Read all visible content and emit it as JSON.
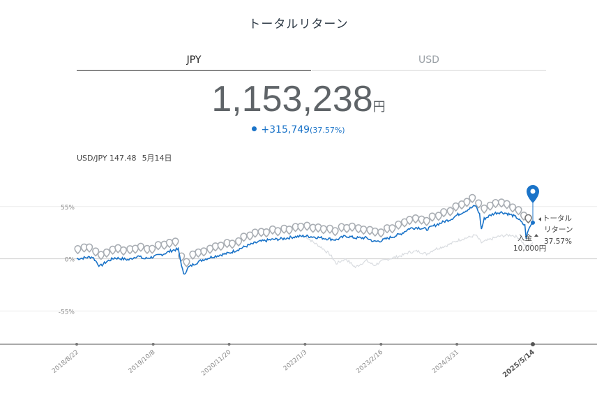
{
  "header": {
    "title": "トータルリターン"
  },
  "tabs": [
    {
      "label": "JPY",
      "active": true
    },
    {
      "label": "USD",
      "active": false
    }
  ],
  "summary": {
    "amount": "1,153,238",
    "unit": "円",
    "change": "+315,749",
    "change_pct": "(37.57%)"
  },
  "fx": {
    "label": "USD/JPY 147.48",
    "date": "5月14日"
  },
  "colors": {
    "accent": "#1a73c8",
    "marker": "#a8adb3",
    "benchmark": "#d9dce0",
    "axis": "#888888"
  },
  "chart_data": {
    "type": "line",
    "x_ticks": [
      "2018/8/22",
      "2019/10/8",
      "2020/11/20",
      "2022/1/3",
      "2023/2/16",
      "2024/3/31",
      "2025/5/14"
    ],
    "y_ticks": [
      "55%",
      "0%",
      "-55%"
    ],
    "ylim": [
      -90,
      85
    ],
    "series": [
      {
        "role": "total-return",
        "color": "#1a73c8",
        "points": [
          [
            "2018/8/22",
            0
          ],
          [
            "2018/10/1",
            1
          ],
          [
            "2018/11/15",
            2
          ],
          [
            "2018/12/25",
            -8
          ],
          [
            "2019/1/30",
            -3
          ],
          [
            "2019/3/15",
            1
          ],
          [
            "2019/5/30",
            -1
          ],
          [
            "2019/7/15",
            3
          ],
          [
            "2019/8/20",
            0
          ],
          [
            "2019/10/8",
            2
          ],
          [
            "2019/12/1",
            5
          ],
          [
            "2020/1/20",
            9
          ],
          [
            "2020/2/20",
            10
          ],
          [
            "2020/3/20",
            -17
          ],
          [
            "2020/4/15",
            -9
          ],
          [
            "2020/5/20",
            -5
          ],
          [
            "2020/7/1",
            -1
          ],
          [
            "2020/8/20",
            2
          ],
          [
            "2020/10/1",
            4
          ],
          [
            "2020/11/20",
            6
          ],
          [
            "2021/1/10",
            10
          ],
          [
            "2021/3/1",
            14
          ],
          [
            "2021/5/1",
            18
          ],
          [
            "2021/7/1",
            20
          ],
          [
            "2021/9/1",
            21
          ],
          [
            "2021/11/1",
            23
          ],
          [
            "2022/1/3",
            24
          ],
          [
            "2022/2/20",
            23
          ],
          [
            "2022/4/1",
            22
          ],
          [
            "2022/6/20",
            20
          ],
          [
            "2022/8/10",
            24
          ],
          [
            "2022/10/1",
            22
          ],
          [
            "2022/12/1",
            22
          ],
          [
            "2023/1/10",
            18
          ],
          [
            "2023/2/16",
            19
          ],
          [
            "2023/4/1",
            22
          ],
          [
            "2023/6/1",
            26
          ],
          [
            "2023/7/20",
            32
          ],
          [
            "2023/9/1",
            33
          ],
          [
            "2023/10/20",
            31
          ],
          [
            "2023/12/1",
            35
          ],
          [
            "2024/1/20",
            39
          ],
          [
            "2024/3/1",
            42
          ],
          [
            "2024/3/31",
            46
          ],
          [
            "2024/5/1",
            49
          ],
          [
            "2024/6/10",
            53
          ],
          [
            "2024/7/10",
            56
          ],
          [
            "2024/7/31",
            47
          ],
          [
            "2024/8/10",
            31
          ],
          [
            "2024/8/25",
            42
          ],
          [
            "2024/9/20",
            45
          ],
          [
            "2024/10/20",
            48
          ],
          [
            "2024/11/20",
            49
          ],
          [
            "2024/12/20",
            48
          ],
          [
            "2025/1/20",
            46
          ],
          [
            "2025/2/20",
            43
          ],
          [
            "2025/3/15",
            38
          ],
          [
            "2025/4/1",
            35
          ],
          [
            "2025/4/8",
            22
          ],
          [
            "2025/4/20",
            30
          ],
          [
            "2025/5/1",
            35
          ],
          [
            "2025/5/14",
            38
          ]
        ]
      },
      {
        "role": "benchmark",
        "color": "#d9dce0",
        "points": [
          [
            "2022/1/3",
            24
          ],
          [
            "2022/2/20",
            17
          ],
          [
            "2022/4/1",
            12
          ],
          [
            "2022/5/20",
            4
          ],
          [
            "2022/6/20",
            -5
          ],
          [
            "2022/8/10",
            0
          ],
          [
            "2022/10/1",
            -9
          ],
          [
            "2022/11/10",
            -4
          ],
          [
            "2022/12/1",
            -2
          ],
          [
            "2023/1/10",
            -7
          ],
          [
            "2023/2/16",
            -3
          ],
          [
            "2023/4/1",
            0
          ],
          [
            "2023/6/1",
            3
          ],
          [
            "2023/7/20",
            7
          ],
          [
            "2023/9/1",
            8
          ],
          [
            "2023/10/20",
            5
          ],
          [
            "2023/12/1",
            10
          ],
          [
            "2024/1/20",
            13
          ],
          [
            "2024/3/1",
            16
          ],
          [
            "2024/3/31",
            19
          ],
          [
            "2024/5/1",
            21
          ],
          [
            "2024/6/10",
            23
          ],
          [
            "2024/7/10",
            25
          ],
          [
            "2024/8/10",
            17
          ],
          [
            "2024/9/20",
            20
          ],
          [
            "2024/11/20",
            24
          ],
          [
            "2025/1/20",
            25
          ],
          [
            "2025/3/1",
            22
          ],
          [
            "2025/4/8",
            12
          ],
          [
            "2025/5/14",
            17
          ]
        ]
      }
    ],
    "annotations": {
      "total_return_label": [
        "トータル",
        "リターン",
        "37.57%"
      ],
      "deposit_label": [
        "入金",
        "10,000円"
      ]
    }
  }
}
